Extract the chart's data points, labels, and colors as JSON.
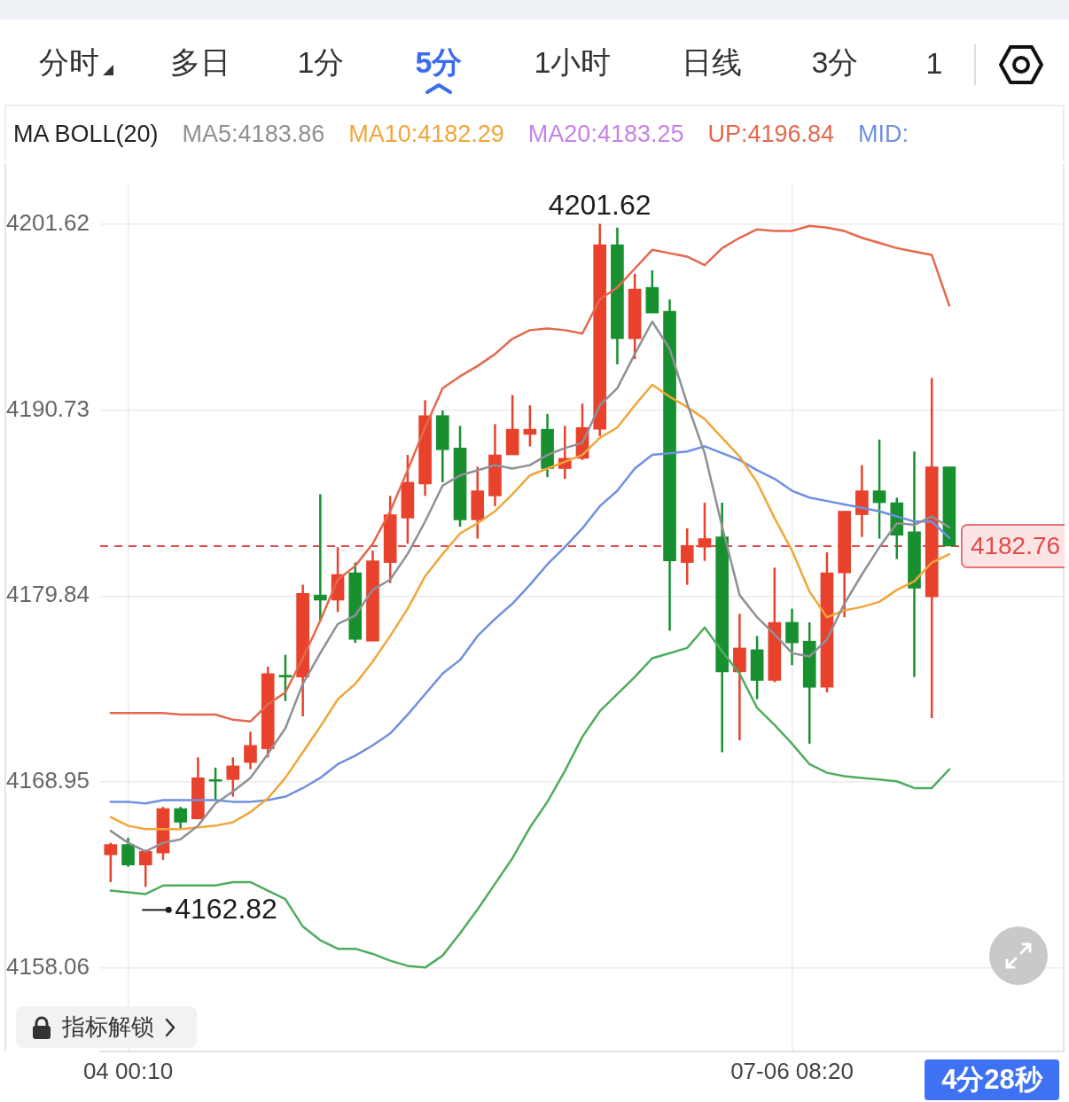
{
  "chart_data": [
    {
      "type": "other",
      "annotations": [
        "分时",
        "多日",
        "1分",
        "5分",
        "1小时",
        "日线",
        "3分",
        "1"
      ]
    },
    {
      "type": "candlestick",
      "legend_title": "MA BOLL(20)",
      "legend": "top",
      "grid": true,
      "categories": [
        null,
        "04 00:10",
        null,
        null,
        null,
        null,
        null,
        null,
        null,
        null,
        null,
        null,
        null,
        null,
        null,
        null,
        null,
        null,
        null,
        null,
        null,
        null,
        null,
        null,
        null,
        null,
        null,
        null,
        null,
        null,
        null,
        null,
        null,
        null,
        null,
        null,
        null,
        null,
        null,
        "07-06 08:20",
        null,
        null,
        null,
        null,
        null,
        null,
        null,
        null,
        null
      ],
      "ohlc": [
        [
          4164.7,
          4165.4,
          4163.1,
          4165.3
        ],
        [
          4165.3,
          4165.7,
          4164.0,
          4164.1
        ],
        [
          4164.1,
          4165.0,
          4162.82,
          4164.9
        ],
        [
          4164.8,
          4167.5,
          4164.4,
          4167.4
        ],
        [
          4167.4,
          4167.5,
          4166.2,
          4166.6
        ],
        [
          4166.8,
          4170.4,
          4166.8,
          4169.2
        ],
        [
          4169.1,
          4169.8,
          4167.9,
          4169.0
        ],
        [
          4169.1,
          4170.4,
          4168.1,
          4169.9
        ],
        [
          4170.1,
          4171.9,
          4169.7,
          4171.1
        ],
        [
          4170.9,
          4175.7,
          4170.4,
          4175.3
        ],
        [
          4175.2,
          4176.4,
          4173.7,
          4175.1
        ],
        [
          4175.1,
          4180.5,
          4172.8,
          4180.0
        ],
        [
          4179.9,
          4185.8,
          4178.4,
          4179.6
        ],
        [
          4179.6,
          4182.7,
          4178.9,
          4181.1
        ],
        [
          4181.2,
          4181.8,
          4177.1,
          4177.3
        ],
        [
          4177.2,
          4182.5,
          4177.2,
          4181.9
        ],
        [
          4181.8,
          4185.7,
          4180.6,
          4184.6
        ],
        [
          4184.4,
          4188.1,
          4182.9,
          4186.5
        ],
        [
          4186.4,
          4191.3,
          4185.7,
          4190.4
        ],
        [
          4190.4,
          4190.7,
          4186.5,
          4188.4
        ],
        [
          4188.5,
          4189.8,
          4183.9,
          4184.3
        ],
        [
          4184.3,
          4187.4,
          4183.2,
          4186.0
        ],
        [
          4185.7,
          4189.9,
          4185.1,
          4188.1
        ],
        [
          4188.1,
          4191.6,
          4188.1,
          4189.6
        ],
        [
          4189.3,
          4191.0,
          4188.6,
          4189.6
        ],
        [
          4189.6,
          4190.5,
          4186.8,
          4187.3
        ],
        [
          4187.3,
          4189.8,
          4186.7,
          4187.9
        ],
        [
          4187.9,
          4191.1,
          4187.8,
          4189.7
        ],
        [
          4189.6,
          4201.62,
          4189.2,
          4200.4
        ],
        [
          4200.4,
          4201.4,
          4193.4,
          4194.9
        ],
        [
          4194.9,
          4198.7,
          4193.7,
          4197.8
        ],
        [
          4197.9,
          4198.9,
          4196.4,
          4196.4
        ],
        [
          4196.5,
          4197.2,
          4177.8,
          4181.9
        ],
        [
          4181.8,
          4183.8,
          4180.5,
          4182.8
        ],
        [
          4182.7,
          4185.3,
          4181.9,
          4183.2
        ],
        [
          4183.3,
          4185.3,
          4170.7,
          4175.4
        ],
        [
          4175.4,
          4178.8,
          4171.4,
          4176.8
        ],
        [
          4176.7,
          4177.5,
          4173.8,
          4174.9
        ],
        [
          4174.9,
          4181.5,
          4174.8,
          4178.3
        ],
        [
          4178.3,
          4179.1,
          4175.8,
          4177.1
        ],
        [
          4177.2,
          4178.3,
          4171.2,
          4174.5
        ],
        [
          4174.5,
          4182.4,
          4174.2,
          4181.2
        ],
        [
          4181.2,
          4184.8,
          4178.6,
          4184.8
        ],
        [
          4184.6,
          4187.5,
          4183.3,
          4186.0
        ],
        [
          4186.0,
          4189.0,
          4183.2,
          4185.3
        ],
        [
          4185.3,
          4185.6,
          4182.0,
          4183.4
        ],
        [
          4183.6,
          4188.3,
          4175.1,
          4180.3
        ],
        [
          4179.8,
          4192.6,
          4172.7,
          4187.4
        ],
        [
          4187.4,
          4187.4,
          4182.76,
          4182.76
        ]
      ],
      "colors": [
        "#e8412c",
        "#18902f",
        "#e8412c",
        "#e8412c",
        "#18902f",
        "#e8412c",
        "#18902f",
        "#e8412c",
        "#e8412c",
        "#e8412c",
        "#18902f",
        "#e8412c",
        "#18902f",
        "#e8412c",
        "#18902f",
        "#e8412c",
        "#e8412c",
        "#e8412c",
        "#e8412c",
        "#18902f",
        "#18902f",
        "#e8412c",
        "#e8412c",
        "#e8412c",
        "#e8412c",
        "#18902f",
        "#e8412c",
        "#e8412c",
        "#e8412c",
        "#18902f",
        "#e8412c",
        "#18902f",
        "#18902f",
        "#e8412c",
        "#e8412c",
        "#18902f",
        "#e8412c",
        "#18902f",
        "#e8412c",
        "#18902f",
        "#18902f",
        "#e8412c",
        "#e8412c",
        "#e8412c",
        "#18902f",
        "#18902f",
        "#18902f",
        "#e8412c",
        "#18902f"
      ],
      "series": [
        {
          "name": "MA5:4183.86",
          "type": "line",
          "color": "#8f9096",
          "values": [
            4166.1,
            4165.4,
            4164.9,
            4165.4,
            4165.6,
            4166.4,
            4167.7,
            4168.4,
            4169.2,
            4170.6,
            4172.1,
            4174.7,
            4176.5,
            4178.2,
            4178.7,
            4180.2,
            4180.8,
            4182.3,
            4184.2,
            4186.3,
            4186.9,
            4187.2,
            4187.5,
            4187.3,
            4187.5,
            4188.1,
            4188.5,
            4188.8,
            4191.0,
            4192.0,
            4194.0,
            4195.9,
            4194.3,
            4191.1,
            4188.2,
            4183.9,
            4179.9,
            4178.6,
            4177.6,
            4176.5,
            4176.3,
            4177.3,
            4179.4,
            4181.1,
            4182.7,
            4184.1,
            4184.0,
            4184.5,
            4183.86
          ]
        },
        {
          "name": "MA10:4182.29",
          "type": "line",
          "color": "#f0a63a",
          "values": [
            4166.9,
            4166.4,
            4166.2,
            4166.2,
            4166.2,
            4166.3,
            4166.4,
            4166.6,
            4167.2,
            4168.0,
            4169.2,
            4170.7,
            4172.2,
            4173.8,
            4174.7,
            4176.0,
            4177.5,
            4179.1,
            4181.0,
            4182.3,
            4183.5,
            4184.1,
            4184.8,
            4185.8,
            4186.9,
            4187.3,
            4187.7,
            4188.1,
            4189.1,
            4189.7,
            4191.0,
            4192.2,
            4191.5,
            4190.9,
            4190.2,
            4189.1,
            4188.0,
            4186.5,
            4184.4,
            4182.5,
            4180.1,
            4178.6,
            4179.0,
            4179.2,
            4179.5,
            4180.2,
            4180.7,
            4181.8,
            4182.29
          ]
        },
        {
          "name": "MA20:4183.25",
          "type": "line",
          "color": "#c583e6",
          "values": [
            null,
            null,
            null,
            null,
            null,
            null,
            null,
            null,
            null,
            null,
            null,
            null,
            null,
            null,
            null,
            null,
            null,
            null,
            null,
            null,
            null,
            null,
            null,
            null,
            null,
            null,
            null,
            null,
            null,
            null,
            null,
            null,
            null,
            null,
            null,
            null,
            null,
            null,
            null,
            null,
            null,
            null,
            null,
            null,
            null,
            null,
            null,
            null,
            null
          ]
        },
        {
          "name": "UP:4196.84",
          "type": "line",
          "color": "#e5684c",
          "values": [
            4173.0,
            4173.0,
            4173.0,
            4173.0,
            4172.9,
            4172.9,
            4172.9,
            4172.6,
            4172.5,
            4173.5,
            4174.2,
            4176.2,
            4178.4,
            4180.8,
            4181.6,
            4182.9,
            4184.8,
            4187.2,
            4189.7,
            4192.0,
            4192.7,
            4193.3,
            4194.0,
            4194.9,
            4195.4,
            4195.5,
            4195.4,
            4195.2,
            4197.2,
            4197.9,
            4199.0,
            4200.1,
            4199.9,
            4199.7,
            4199.2,
            4200.2,
            4200.8,
            4201.3,
            4201.2,
            4201.2,
            4201.5,
            4201.4,
            4201.2,
            4200.8,
            4200.5,
            4200.2,
            4200.0,
            4199.8,
            4196.84
          ]
        },
        {
          "name": "MID:",
          "type": "line",
          "color": "#6f90e0",
          "values": [
            4167.8,
            4167.8,
            4167.7,
            4167.9,
            4167.9,
            4167.9,
            4167.9,
            4167.8,
            4167.8,
            4167.9,
            4168.1,
            4168.6,
            4169.2,
            4170.0,
            4170.5,
            4171.1,
            4171.8,
            4172.9,
            4174.1,
            4175.3,
            4176.1,
            4177.5,
            4178.5,
            4179.4,
            4180.5,
            4181.7,
            4182.7,
            4183.8,
            4185.1,
            4186.0,
            4187.3,
            4188.1,
            4188.2,
            4188.3,
            4188.6,
            4188.2,
            4187.8,
            4187.2,
            4186.7,
            4186.0,
            4185.6,
            4185.4,
            4185.2,
            4185.0,
            4184.8,
            4184.5,
            4184.2,
            4184.2,
            4183.25
          ]
        },
        {
          "type": "line",
          "color": "#4fac5e",
          "values": [
            4162.6,
            4162.5,
            4162.4,
            4162.9,
            4162.9,
            4162.9,
            4162.9,
            4163.1,
            4163.1,
            4162.6,
            4162.1,
            4160.5,
            4159.7,
            4159.2,
            4159.2,
            4158.9,
            4158.5,
            4158.2,
            4158.1,
            4158.8,
            4160.1,
            4161.5,
            4163.0,
            4164.5,
            4166.3,
            4167.8,
            4169.6,
            4171.6,
            4173.1,
            4174.1,
            4175.1,
            4176.2,
            4176.5,
            4176.8,
            4178.0,
            4176.6,
            4175.3,
            4173.3,
            4172.3,
            4171.2,
            4170.0,
            4169.5,
            4169.3,
            4169.2,
            4169.1,
            4169.0,
            4168.6,
            4168.6,
            4169.7
          ]
        }
      ],
      "ylim": [
        4153.2,
        4204.0
      ],
      "yticks": [
        4158.06,
        4168.95,
        4179.84,
        4190.73,
        4201.62
      ],
      "ref_lines": [
        {
          "axis": "y",
          "value": 4182.76,
          "label": "4182.76",
          "color": "#e04a4a",
          "line_style": "dashed"
        }
      ],
      "annotations": [
        "指标解锁",
        "4分28秒",
        {
          "text": "4201.62",
          "y": 4201.62
        },
        {
          "text": "4162.82",
          "y": 4162.82
        }
      ]
    }
  ]
}
